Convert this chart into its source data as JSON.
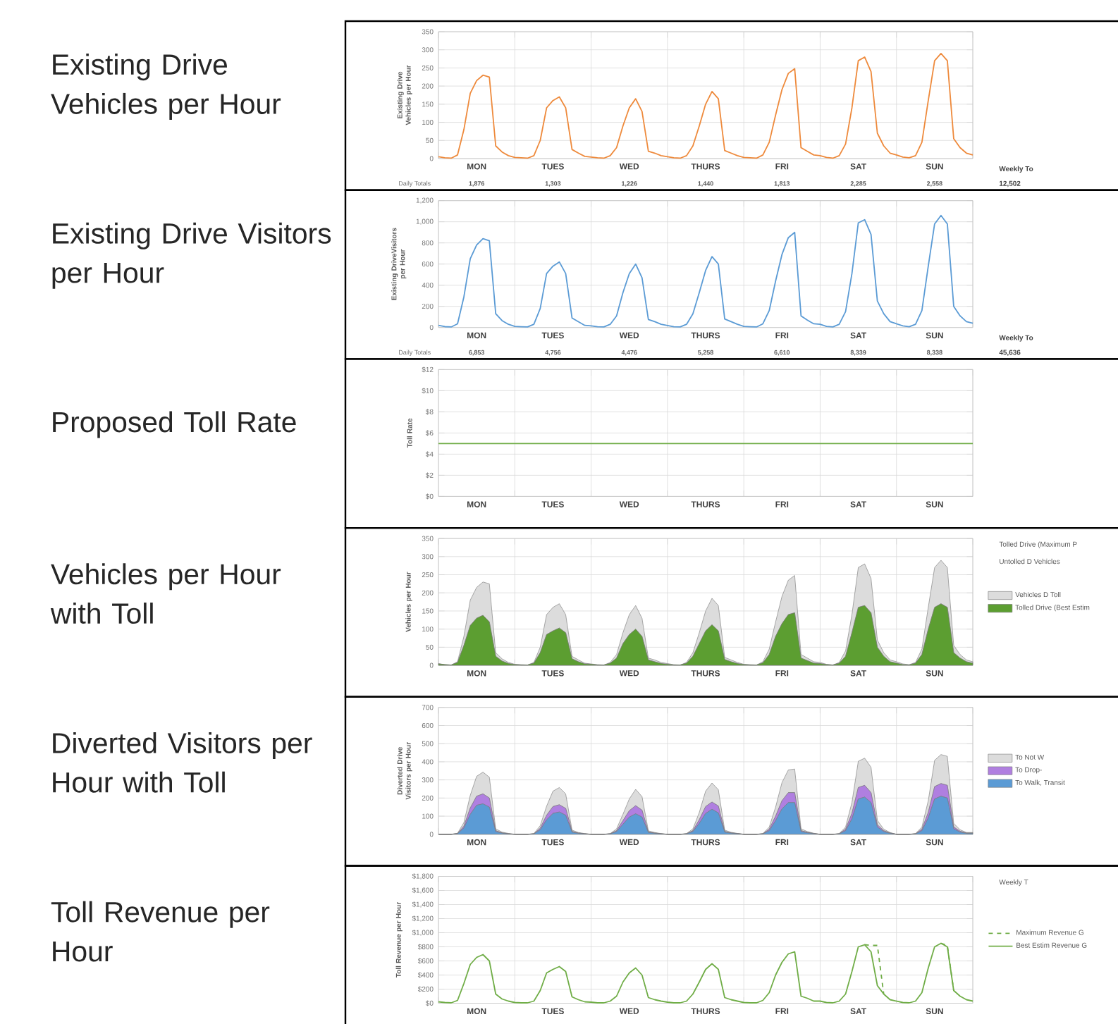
{
  "chart_data": [
    {
      "type": "line",
      "title": "Existing Drive Vehicles per Hour",
      "ylabel": "Existing Drive Vehicles per Hour",
      "color": "#ee8a3c",
      "grid": true,
      "categories": [
        null,
        null,
        null,
        null,
        null,
        null,
        "MON",
        null,
        null,
        null,
        null,
        null,
        null,
        null,
        null,
        null,
        null,
        null,
        "TUES",
        null,
        null,
        null,
        null,
        null,
        null,
        null,
        null,
        null,
        null,
        null,
        "WED",
        null,
        null,
        null,
        null,
        null,
        null,
        null,
        null,
        null,
        null,
        null,
        "THURS",
        null,
        null,
        null,
        null,
        null,
        null,
        null,
        null,
        null,
        null,
        null,
        "FRI",
        null,
        null,
        null,
        null,
        null,
        null,
        null,
        null,
        null,
        null,
        null,
        "SAT",
        null,
        null,
        null,
        null,
        null,
        null,
        null,
        null,
        null,
        null,
        null,
        "SUN",
        null,
        null,
        null,
        null,
        null,
        null
      ],
      "values": [
        5,
        2,
        1,
        10,
        80,
        180,
        215,
        230,
        225,
        35,
        18,
        8,
        3,
        2,
        1,
        8,
        50,
        140,
        160,
        170,
        140,
        25,
        15,
        6,
        4,
        2,
        1,
        8,
        30,
        90,
        140,
        165,
        130,
        20,
        15,
        8,
        5,
        2,
        1,
        8,
        35,
        90,
        150,
        185,
        165,
        22,
        15,
        8,
        3,
        2,
        1,
        10,
        45,
        120,
        190,
        235,
        248,
        30,
        20,
        10,
        8,
        3,
        1,
        8,
        40,
        140,
        270,
        280,
        240,
        70,
        35,
        15,
        10,
        4,
        2,
        8,
        45,
        160,
        270,
        290,
        270,
        55,
        30,
        15,
        10
      ],
      "ylim": [
        0,
        350
      ],
      "yticks": [
        0,
        50,
        100,
        150,
        200,
        250,
        300,
        350
      ],
      "annotations": [
        "Daily Totals",
        "1,876",
        "1,303",
        "1,226",
        "1,440",
        "1,813",
        "2,285",
        "2,558",
        "Weekly To",
        "12,502"
      ]
    },
    {
      "type": "line",
      "title": "Existing Drive Visitors per Hour",
      "ylabel": "Existing DriveVisitors per Hour",
      "color": "#5b9bd5",
      "grid": true,
      "categories": [
        null,
        null,
        null,
        null,
        null,
        null,
        "MON",
        null,
        null,
        null,
        null,
        null,
        null,
        null,
        null,
        null,
        null,
        null,
        "TUES",
        null,
        null,
        null,
        null,
        null,
        null,
        null,
        null,
        null,
        null,
        null,
        "WED",
        null,
        null,
        null,
        null,
        null,
        null,
        null,
        null,
        null,
        null,
        null,
        "THURS",
        null,
        null,
        null,
        null,
        null,
        null,
        null,
        null,
        null,
        null,
        null,
        "FRI",
        null,
        null,
        null,
        null,
        null,
        null,
        null,
        null,
        null,
        null,
        null,
        "SAT",
        null,
        null,
        null,
        null,
        null,
        null,
        null,
        null,
        null,
        null,
        null,
        "SUN",
        null,
        null,
        null,
        null,
        null,
        null
      ],
      "values": [
        20,
        8,
        5,
        35,
        290,
        650,
        780,
        840,
        820,
        130,
        65,
        30,
        10,
        7,
        5,
        30,
        180,
        510,
        580,
        620,
        510,
        90,
        55,
        20,
        15,
        7,
        5,
        30,
        110,
        330,
        510,
        600,
        470,
        75,
        55,
        30,
        18,
        7,
        5,
        30,
        130,
        330,
        540,
        670,
        600,
        80,
        55,
        30,
        10,
        7,
        5,
        35,
        160,
        440,
        690,
        850,
        900,
        110,
        70,
        35,
        30,
        10,
        5,
        30,
        150,
        510,
        990,
        1020,
        880,
        250,
        130,
        55,
        35,
        15,
        7,
        30,
        160,
        580,
        980,
        1060,
        980,
        200,
        110,
        55,
        40
      ],
      "ylim": [
        0,
        1200
      ],
      "yticks": [
        0,
        200,
        400,
        600,
        800,
        {
          "value": 1000,
          "label": "1,000"
        },
        {
          "value": 1200,
          "label": "1,200"
        }
      ],
      "annotations": [
        "Daily Totals",
        "6,853",
        "4,756",
        "4,476",
        "5,258",
        "6,610",
        "8,339",
        "8,338",
        "Weekly To",
        "45,636"
      ]
    },
    {
      "type": "line",
      "title": "Proposed Toll Rate",
      "ylabel": "Toll Rate",
      "color": "#70ad47",
      "grid": true,
      "categories": [
        null,
        null,
        null,
        null,
        null,
        null,
        "MON",
        null,
        null,
        null,
        null,
        null,
        null,
        null,
        null,
        null,
        null,
        null,
        "TUES",
        null,
        null,
        null,
        null,
        null,
        null,
        null,
        null,
        null,
        null,
        null,
        "WED",
        null,
        null,
        null,
        null,
        null,
        null,
        null,
        null,
        null,
        null,
        null,
        "THURS",
        null,
        null,
        null,
        null,
        null,
        null,
        null,
        null,
        null,
        null,
        null,
        "FRI",
        null,
        null,
        null,
        null,
        null,
        null,
        null,
        null,
        null,
        null,
        null,
        "SAT",
        null,
        null,
        null,
        null,
        null,
        null,
        null,
        null,
        null,
        null,
        null,
        "SUN",
        null,
        null,
        null,
        null,
        null,
        null
      ],
      "values": [
        5,
        5,
        5,
        5,
        5,
        5,
        5,
        5,
        5,
        5,
        5,
        5,
        5,
        5,
        5,
        5,
        5,
        5,
        5,
        5,
        5,
        5,
        5,
        5,
        5,
        5,
        5,
        5,
        5,
        5,
        5,
        5,
        5,
        5,
        5,
        5,
        5,
        5,
        5,
        5,
        5,
        5,
        5,
        5,
        5,
        5,
        5,
        5,
        5,
        5,
        5,
        5,
        5,
        5,
        5,
        5,
        5,
        5,
        5,
        5,
        5,
        5,
        5,
        5,
        5,
        5,
        5,
        5,
        5,
        5,
        5,
        5,
        5,
        5,
        5,
        5,
        5,
        5,
        5,
        5,
        5,
        5,
        5,
        5,
        5
      ],
      "ylim": [
        0,
        12
      ],
      "yticks": [
        {
          "value": 0,
          "label": "$0"
        },
        {
          "value": 2,
          "label": "$2"
        },
        {
          "value": 4,
          "label": "$4"
        },
        {
          "value": 6,
          "label": "$6"
        },
        {
          "value": 8,
          "label": "$8"
        },
        {
          "value": 10,
          "label": "$10"
        },
        {
          "value": 12,
          "label": "$12"
        }
      ]
    },
    {
      "type": "area",
      "stacked": true,
      "title": "Vehicles per Hour with Toll",
      "ylabel": "Vehicles per Hour",
      "grid": true,
      "legend": "right",
      "categories": [
        null,
        null,
        null,
        null,
        null,
        null,
        "MON",
        null,
        null,
        null,
        null,
        null,
        null,
        null,
        null,
        null,
        null,
        null,
        "TUES",
        null,
        null,
        null,
        null,
        null,
        null,
        null,
        null,
        null,
        null,
        null,
        "WED",
        null,
        null,
        null,
        null,
        null,
        null,
        null,
        null,
        null,
        null,
        null,
        "THURS",
        null,
        null,
        null,
        null,
        null,
        null,
        null,
        null,
        null,
        null,
        null,
        "FRI",
        null,
        null,
        null,
        null,
        null,
        null,
        null,
        null,
        null,
        null,
        null,
        "SAT",
        null,
        null,
        null,
        null,
        null,
        null,
        null,
        null,
        null,
        null,
        null,
        "SUN",
        null,
        null,
        null,
        null,
        null,
        null
      ],
      "series": [
        {
          "name": "Tolled Drive (Best Estim",
          "color": "#5c9e31",
          "values": [
            4,
            2,
            1,
            8,
            55,
            110,
            130,
            138,
            120,
            25,
            12,
            5,
            2,
            1,
            1,
            6,
            35,
            85,
            95,
            103,
            90,
            18,
            10,
            4,
            3,
            1,
            1,
            6,
            20,
            60,
            85,
            100,
            80,
            15,
            10,
            5,
            3,
            1,
            1,
            6,
            25,
            60,
            95,
            112,
            95,
            16,
            10,
            5,
            2,
            1,
            1,
            7,
            30,
            80,
            115,
            140,
            145,
            20,
            13,
            6,
            5,
            2,
            1,
            6,
            25,
            90,
            160,
            165,
            145,
            50,
            25,
            10,
            6,
            2,
            1,
            6,
            30,
            100,
            160,
            170,
            160,
            35,
            20,
            10,
            6
          ]
        },
        {
          "name": "Vehicles D Toll",
          "color": "#dcdcdc",
          "values": [
            1,
            0,
            0,
            2,
            25,
            70,
            85,
            92,
            105,
            10,
            6,
            3,
            1,
            1,
            0,
            2,
            15,
            55,
            65,
            67,
            50,
            7,
            5,
            2,
            1,
            1,
            0,
            2,
            10,
            30,
            55,
            65,
            50,
            5,
            5,
            3,
            2,
            1,
            0,
            2,
            10,
            30,
            55,
            73,
            70,
            6,
            5,
            3,
            1,
            1,
            0,
            3,
            15,
            40,
            75,
            95,
            103,
            10,
            7,
            4,
            3,
            1,
            0,
            2,
            15,
            50,
            110,
            115,
            95,
            20,
            10,
            5,
            4,
            2,
            1,
            2,
            15,
            60,
            110,
            120,
            110,
            20,
            10,
            5,
            4
          ]
        }
      ],
      "ylim": [
        0,
        350
      ],
      "yticks": [
        0,
        50,
        100,
        150,
        200,
        250,
        300,
        350
      ],
      "annotations": [
        "Tolled Drive (Maximum P",
        "Untolled D Vehicles"
      ]
    },
    {
      "type": "area",
      "stacked": true,
      "title": "Diverted Visitors per Hour with Toll",
      "ylabel": "Diverted Drive Visitors per Hour",
      "grid": true,
      "legend": "right",
      "categories": [
        null,
        null,
        null,
        null,
        null,
        null,
        "MON",
        null,
        null,
        null,
        null,
        null,
        null,
        null,
        null,
        null,
        null,
        null,
        "TUES",
        null,
        null,
        null,
        null,
        null,
        null,
        null,
        null,
        null,
        null,
        null,
        "WED",
        null,
        null,
        null,
        null,
        null,
        null,
        null,
        null,
        null,
        null,
        null,
        "THURS",
        null,
        null,
        null,
        null,
        null,
        null,
        null,
        null,
        null,
        null,
        null,
        "FRI",
        null,
        null,
        null,
        null,
        null,
        null,
        null,
        null,
        null,
        null,
        null,
        "SAT",
        null,
        null,
        null,
        null,
        null,
        null,
        null,
        null,
        null,
        null,
        null,
        "SUN",
        null,
        null,
        null,
        null,
        null,
        null
      ],
      "series": [
        {
          "name": "To Walk, Transit",
          "color": "#5b9bd5",
          "values": [
            0,
            0,
            0,
            3,
            35,
            110,
            160,
            168,
            150,
            15,
            6,
            2,
            0,
            0,
            0,
            2,
            25,
            80,
            115,
            123,
            105,
            12,
            5,
            2,
            0,
            0,
            0,
            2,
            15,
            55,
            95,
            113,
            95,
            10,
            5,
            2,
            0,
            0,
            0,
            2,
            15,
            60,
            115,
            138,
            118,
            12,
            6,
            3,
            0,
            0,
            0,
            2,
            20,
            75,
            140,
            175,
            175,
            15,
            8,
            3,
            0,
            0,
            0,
            2,
            20,
            85,
            195,
            205,
            175,
            40,
            15,
            5,
            0,
            0,
            0,
            2,
            20,
            90,
            195,
            210,
            200,
            30,
            12,
            5,
            5
          ]
        },
        {
          "name": "To Drop-",
          "color": "#b07fe0",
          "values": [
            0,
            0,
            0,
            1,
            10,
            35,
            50,
            55,
            50,
            5,
            2,
            1,
            0,
            0,
            0,
            1,
            8,
            25,
            38,
            40,
            38,
            4,
            2,
            1,
            0,
            0,
            0,
            1,
            5,
            20,
            35,
            45,
            38,
            3,
            2,
            1,
            0,
            0,
            0,
            1,
            5,
            20,
            38,
            40,
            38,
            4,
            2,
            1,
            0,
            0,
            0,
            1,
            8,
            25,
            45,
            55,
            55,
            5,
            3,
            1,
            0,
            0,
            0,
            1,
            8,
            30,
            63,
            65,
            55,
            12,
            5,
            2,
            0,
            0,
            0,
            1,
            8,
            30,
            68,
            70,
            70,
            10,
            5,
            2,
            2
          ]
        },
        {
          "name": "To Not W",
          "color": "#dcdcdc",
          "values": [
            0,
            0,
            0,
            2,
            20,
            70,
            110,
            120,
            115,
            10,
            4,
            2,
            0,
            0,
            0,
            1,
            15,
            50,
            85,
            95,
            80,
            7,
            3,
            1,
            0,
            0,
            0,
            1,
            10,
            35,
            65,
            90,
            75,
            6,
            3,
            1,
            0,
            0,
            0,
            1,
            10,
            40,
            85,
            105,
            90,
            7,
            3,
            1,
            0,
            0,
            0,
            1,
            12,
            50,
            100,
            125,
            130,
            10,
            4,
            2,
            0,
            0,
            0,
            1,
            12,
            60,
            145,
            150,
            140,
            25,
            8,
            3,
            0,
            0,
            0,
            1,
            12,
            65,
            145,
            160,
            160,
            20,
            8,
            3,
            3
          ]
        }
      ],
      "ylim": [
        0,
        700
      ],
      "yticks": [
        0,
        100,
        200,
        300,
        400,
        500,
        600,
        700
      ]
    },
    {
      "type": "line",
      "title": "Toll Revenue per Hour",
      "ylabel": "Toll Revenue per Hour",
      "grid": true,
      "legend": "right",
      "categories": [
        null,
        null,
        null,
        null,
        null,
        null,
        "MON",
        null,
        null,
        null,
        null,
        null,
        null,
        null,
        null,
        null,
        null,
        null,
        "TUES",
        null,
        null,
        null,
        null,
        null,
        null,
        null,
        null,
        null,
        null,
        null,
        "WED",
        null,
        null,
        null,
        null,
        null,
        null,
        null,
        null,
        null,
        null,
        null,
        "THURS",
        null,
        null,
        null,
        null,
        null,
        null,
        null,
        null,
        null,
        null,
        null,
        "FRI",
        null,
        null,
        null,
        null,
        null,
        null,
        null,
        null,
        null,
        null,
        null,
        "SAT",
        null,
        null,
        null,
        null,
        null,
        null,
        null,
        null,
        null,
        null,
        null,
        "SUN",
        null,
        null,
        null,
        null,
        null,
        null
      ],
      "series": [
        {
          "name": "Maximum Revenue G",
          "color": "#70ad47",
          "line_style": "dashed",
          "values": [
            null,
            null,
            null,
            null,
            null,
            null,
            null,
            null,
            null,
            null,
            null,
            null,
            null,
            null,
            null,
            null,
            null,
            null,
            null,
            null,
            null,
            null,
            null,
            null,
            null,
            null,
            null,
            null,
            null,
            null,
            null,
            null,
            null,
            null,
            null,
            null,
            null,
            null,
            null,
            null,
            null,
            null,
            null,
            null,
            null,
            null,
            null,
            null,
            null,
            null,
            null,
            null,
            null,
            null,
            null,
            null,
            null,
            null,
            null,
            null,
            null,
            null,
            null,
            null,
            null,
            null,
            null,
            830,
            820,
            820,
            130,
            null,
            null,
            null,
            null,
            null,
            null,
            null,
            null,
            850,
            820,
            180,
            null,
            null,
            null
          ]
        },
        {
          "name": "Best Estim Revenue G",
          "color": "#70ad47",
          "values": [
            20,
            10,
            5,
            40,
            280,
            550,
            650,
            690,
            600,
            130,
            60,
            30,
            10,
            5,
            5,
            30,
            180,
            430,
            480,
            520,
            450,
            90,
            50,
            20,
            15,
            5,
            5,
            30,
            100,
            300,
            430,
            500,
            400,
            80,
            50,
            30,
            15,
            5,
            5,
            30,
            130,
            300,
            480,
            560,
            480,
            80,
            50,
            30,
            10,
            5,
            5,
            40,
            150,
            400,
            580,
            700,
            730,
            100,
            70,
            30,
            30,
            10,
            5,
            30,
            130,
            450,
            800,
            830,
            730,
            250,
            130,
            50,
            30,
            10,
            5,
            30,
            150,
            500,
            800,
            850,
            800,
            180,
            100,
            50,
            30
          ]
        }
      ],
      "ylim": [
        0,
        1800
      ],
      "yticks": [
        {
          "value": 0,
          "label": "$0"
        },
        {
          "value": 200,
          "label": "$200"
        },
        {
          "value": 400,
          "label": "$400"
        },
        {
          "value": 600,
          "label": "$600"
        },
        {
          "value": 800,
          "label": "$800"
        },
        {
          "value": 1000,
          "label": "$1,000"
        },
        {
          "value": 1200,
          "label": "$1,200"
        },
        {
          "value": 1400,
          "label": "$1,400"
        },
        {
          "value": 1600,
          "label": "$1,600"
        },
        {
          "value": 1800,
          "label": "$1,800"
        }
      ],
      "annotations": [
        "Weekly T"
      ]
    }
  ]
}
